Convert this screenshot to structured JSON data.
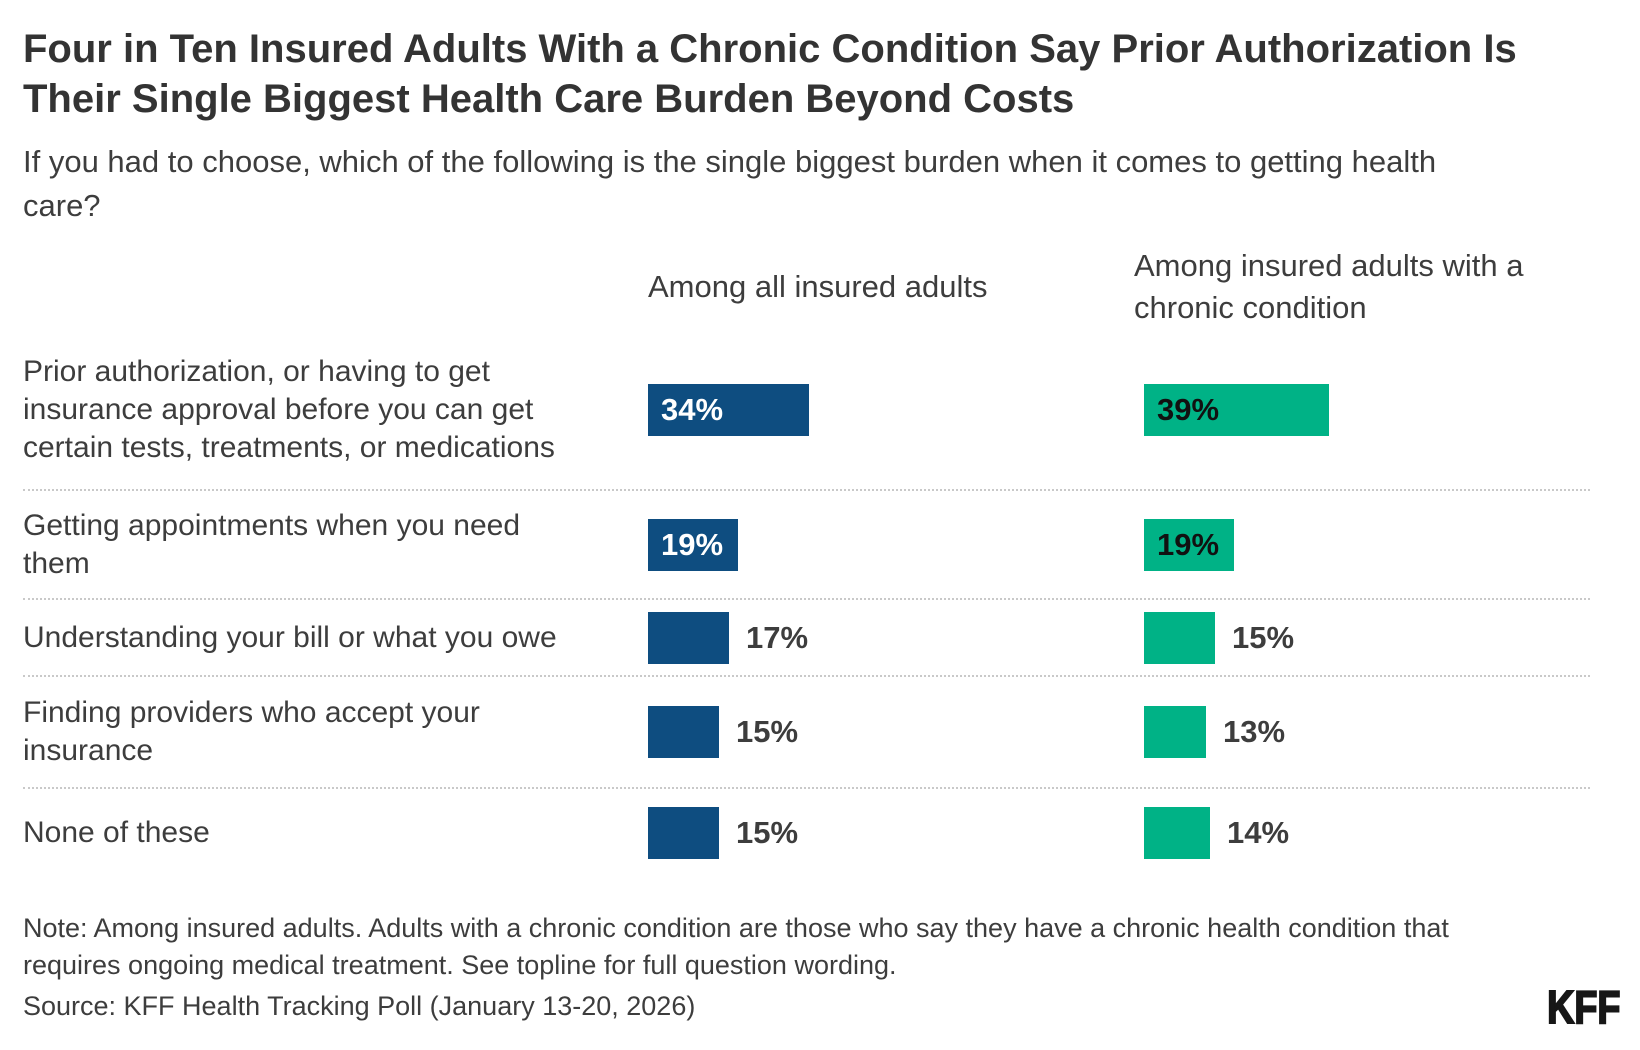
{
  "title": "Four in Ten Insured Adults With a Chronic Condition Say Prior Authorization Is Their Single Biggest Health Care Burden Beyond Costs",
  "subtitle": "If you had to choose, which of the following is the single biggest burden when it comes to getting health care?",
  "columns": [
    "Among all insured adults",
    "Among insured adults with a chronic condition"
  ],
  "chart_data": {
    "type": "bar",
    "orientation": "horizontal",
    "value_format": "percent",
    "categories": [
      "Prior authorization, or having to get insurance approval before you can get certain tests, treatments, or medications",
      "Getting appointments when you need them",
      "Understanding your bill or what you owe",
      "Finding providers who accept your insurance",
      "None of these"
    ],
    "series": [
      {
        "name": "Among all insured adults",
        "color": "#0E4D80",
        "label_color_inside": "#ffffff",
        "values": [
          34,
          19,
          17,
          15,
          15
        ]
      },
      {
        "name": "Among insured adults with a chronic condition",
        "color": "#00B286",
        "label_color_inside": "#111111",
        "values": [
          39,
          19,
          15,
          13,
          14
        ]
      }
    ],
    "xlim": [
      0,
      100
    ],
    "grid": false,
    "legend_position": "column-headers"
  },
  "note": "Note: Among insured adults. Adults with a chronic condition are those who say they have a chronic health condition that requires ongoing medical treatment. See topline for full question wording.",
  "source": "Source: KFF Health Tracking Poll (January 13-20, 2026)",
  "logo": "KFF"
}
